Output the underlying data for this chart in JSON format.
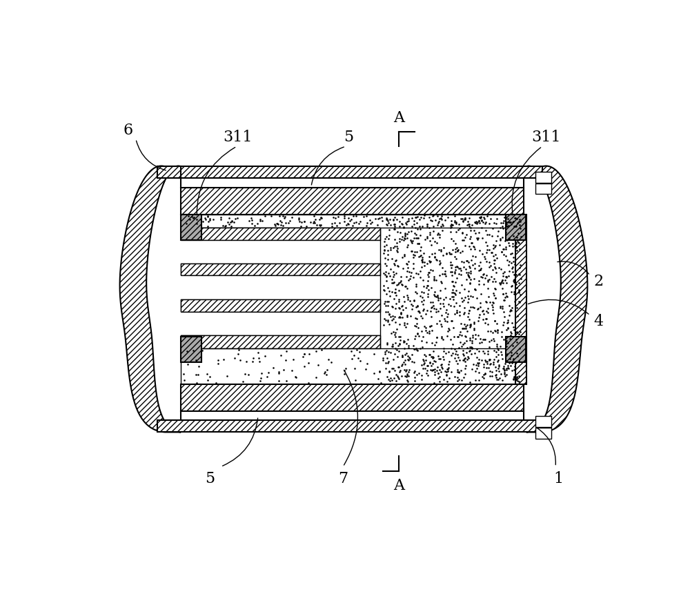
{
  "fig_width": 10.0,
  "fig_height": 8.78,
  "dpi": 100,
  "bg_color": "#ffffff",
  "line_color": "#000000"
}
